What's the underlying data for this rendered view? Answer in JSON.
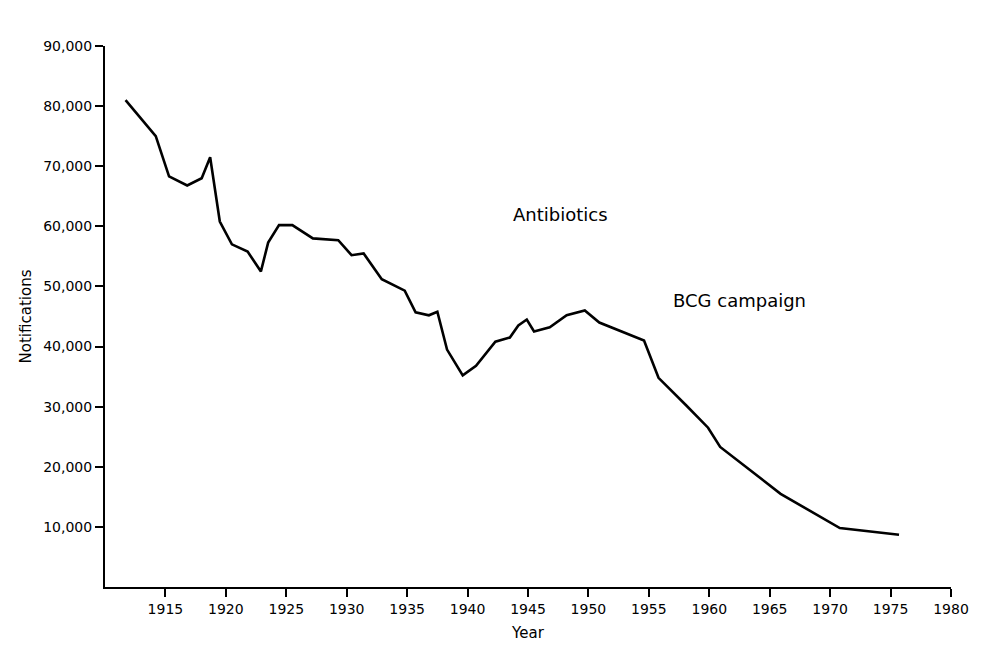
{
  "chart_data": {
    "type": "line",
    "x_label": "Year",
    "y_label": "Notifications",
    "x": [
      1911.7,
      1914.2,
      1915.3,
      1916.8,
      1918,
      1918.7,
      1919.5,
      1920.5,
      1921.8,
      1922.9,
      1923.5,
      1924.4,
      1925.5,
      1927.2,
      1929.3,
      1930.4,
      1931.4,
      1932.9,
      1934.8,
      1935.7,
      1936.8,
      1937.5,
      1938.3,
      1939.6,
      1940.7,
      1942.3,
      1943.5,
      1944.2,
      1944.9,
      1945.5,
      1946.8,
      1948.2,
      1949.7,
      1950.9,
      1954.6,
      1955.8,
      1958.1,
      1959.9,
      1960.9,
      1965.9,
      1970.8,
      1975.7
    ],
    "values": [
      81000,
      75000,
      68300,
      66800,
      68000,
      71500,
      60800,
      57000,
      55800,
      52500,
      57300,
      60200,
      60200,
      58000,
      57700,
      55200,
      55500,
      51200,
      49300,
      45700,
      45200,
      45800,
      39500,
      35200,
      36800,
      40800,
      41500,
      43500,
      44500,
      42500,
      43200,
      45200,
      46000,
      44000,
      41000,
      34800,
      30200,
      26500,
      23300,
      15500,
      9800,
      8700
    ],
    "color": "#000000",
    "xlim": [
      1910,
      1980
    ],
    "xticks": [
      1915,
      1920,
      1925,
      1930,
      1935,
      1940,
      1945,
      1950,
      1955,
      1960,
      1965,
      1970,
      1975,
      1980
    ],
    "ylim": [
      0,
      90000
    ],
    "yticks": [
      {
        "value": 10000,
        "label": "10,000"
      },
      {
        "value": 20000,
        "label": "20,000"
      },
      {
        "value": 30000,
        "label": "30,000"
      },
      {
        "value": 40000,
        "label": "40,000"
      },
      {
        "value": 50000,
        "label": "50,000"
      },
      {
        "value": 60000,
        "label": "60,000"
      },
      {
        "value": 70000,
        "label": "70,000"
      },
      {
        "value": 80000,
        "label": "80,000"
      },
      {
        "value": 90000,
        "label": "90,000"
      }
    ],
    "annotations": [
      "Antibiotics",
      "BCG campaign"
    ],
    "grid": false
  }
}
